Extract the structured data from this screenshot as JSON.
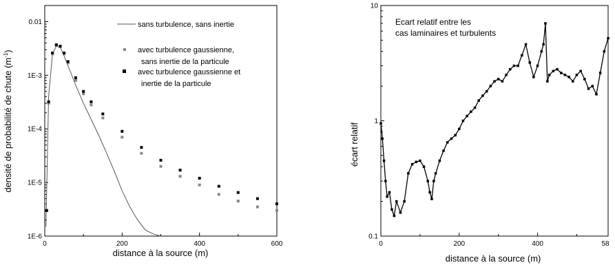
{
  "chart_data": [
    {
      "type": "line",
      "xlabel": "distance à la source (m)",
      "ylabel": "densité de probabilité de chute (m",
      "ylabel_sup": "-1",
      "ylabel_close": ")",
      "xlim": [
        0,
        600
      ],
      "ylim": [
        1e-06,
        0.02
      ],
      "y_scale": "log",
      "x_ticks": [
        0,
        200,
        400,
        600
      ],
      "x_tick_labels": [
        "0",
        "200",
        "400",
        "600"
      ],
      "y_ticks": [
        1e-06,
        1e-05,
        0.0001,
        0.001,
        0.01
      ],
      "y_tick_labels": [
        "1E-6",
        "1E-5",
        "1E-4",
        "1E-3",
        "0.01"
      ],
      "legend_position": "top-right",
      "series": [
        {
          "name": "sans turbulence, sans inertie",
          "legend_lines": [
            "sans turbulence, sans inertie"
          ],
          "style": "line",
          "color": "#555555",
          "x": [
            3,
            10,
            20,
            30,
            40,
            50,
            60,
            70,
            80,
            100,
            120,
            140,
            160,
            180,
            200,
            220,
            240,
            260,
            280,
            300
          ],
          "y": [
            1.5e-06,
            0.0004,
            0.0025,
            0.0035,
            0.0033,
            0.0023,
            0.0015,
            0.001,
            0.00065,
            0.0003,
            0.00015,
            7.5e-05,
            3.5e-05,
            1.6e-05,
            7e-06,
            3.5e-06,
            2e-06,
            1.3e-06,
            1.1e-06,
            1e-06
          ]
        },
        {
          "name": "avec turbulence gaussienne, sans inertie de la particule",
          "legend_lines": [
            "avec turbulence gaussienne,",
            "sans inertie de la particule"
          ],
          "style": "markers",
          "color": "#888888",
          "x": [
            5,
            10,
            20,
            30,
            40,
            50,
            60,
            80,
            100,
            120,
            150,
            200,
            250,
            300,
            350,
            400,
            450,
            500,
            550,
            600
          ],
          "y": [
            3e-06,
            0.0003,
            0.0025,
            0.0036,
            0.0034,
            0.0025,
            0.0017,
            0.0008,
            0.00045,
            0.00028,
            0.00016,
            7e-05,
            3.5e-05,
            2e-05,
            1.3e-05,
            9e-06,
            6e-06,
            4.5e-06,
            3.5e-06,
            3e-06
          ]
        },
        {
          "name": "avec turbulence gaussienne et inertie de la particule",
          "legend_lines": [
            "avec turbulence gaussienne et",
            "inertie de la particule"
          ],
          "style": "markers",
          "color": "#000000",
          "x": [
            5,
            10,
            20,
            30,
            40,
            50,
            60,
            80,
            100,
            120,
            150,
            200,
            250,
            300,
            350,
            400,
            450,
            500,
            550,
            600
          ],
          "y": [
            3e-06,
            0.00032,
            0.0026,
            0.0037,
            0.0035,
            0.0026,
            0.0018,
            0.0009,
            0.0005,
            0.00032,
            0.00019,
            9e-05,
            4.5e-05,
            2.6e-05,
            1.7e-05,
            1.2e-05,
            8.5e-06,
            6.5e-06,
            5e-06,
            4e-06
          ]
        }
      ]
    },
    {
      "type": "line",
      "xlabel": "distance à la source (m)",
      "ylabel": "écart relatif",
      "xlim": [
        0,
        580
      ],
      "ylim": [
        0.1,
        10
      ],
      "y_scale": "log",
      "x_ticks": [
        0,
        200,
        400
      ],
      "x_tick_labels": [
        "0",
        "200",
        "400"
      ],
      "x_edge_label": "58",
      "y_ticks": [
        0.1,
        1,
        10
      ],
      "y_tick_labels": [
        "0.1",
        "1",
        "10"
      ],
      "annotation": [
        "Ecart relatif entre les",
        "cas laminaires et turbulents"
      ],
      "series": [
        {
          "style": "line+markers",
          "color": "#000000",
          "x": [
            0,
            4,
            8,
            12,
            16,
            22,
            28,
            34,
            40,
            50,
            60,
            70,
            80,
            90,
            100,
            110,
            120,
            125,
            130,
            135,
            140,
            150,
            160,
            170,
            180,
            190,
            200,
            210,
            220,
            230,
            240,
            250,
            260,
            270,
            280,
            290,
            300,
            310,
            320,
            330,
            340,
            350,
            360,
            370,
            380,
            390,
            400,
            410,
            415,
            420,
            425,
            430,
            440,
            450,
            460,
            470,
            480,
            490,
            500,
            510,
            520,
            530,
            540,
            550,
            560,
            570,
            580
          ],
          "y": [
            0.95,
            0.7,
            0.45,
            0.3,
            0.22,
            0.24,
            0.17,
            0.15,
            0.2,
            0.16,
            0.2,
            0.35,
            0.42,
            0.44,
            0.45,
            0.4,
            0.3,
            0.24,
            0.21,
            0.3,
            0.35,
            0.45,
            0.55,
            0.65,
            0.7,
            0.75,
            0.85,
            1.0,
            1.1,
            1.2,
            1.3,
            1.5,
            1.65,
            1.8,
            2.0,
            2.2,
            2.3,
            2.2,
            2.5,
            2.8,
            3.0,
            3.0,
            3.7,
            4.6,
            3.2,
            2.4,
            3.0,
            4.0,
            4.6,
            7.0,
            2.2,
            2.5,
            2.7,
            2.8,
            2.6,
            2.5,
            2.4,
            2.2,
            2.5,
            2.7,
            2.3,
            1.9,
            2.0,
            1.7,
            2.6,
            4.0,
            5.2
          ]
        }
      ]
    }
  ]
}
